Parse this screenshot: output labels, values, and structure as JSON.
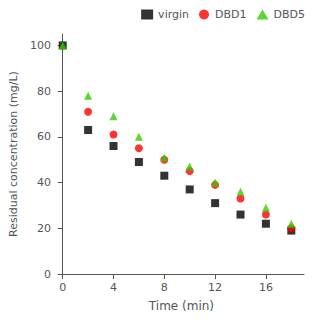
{
  "chart_data": {
    "type": "scatter",
    "xlabel": "Time (min)",
    "ylabel": "Residual concentration (mg/L)",
    "series": [
      {
        "name": "virgin",
        "color": "#000000",
        "marker": "square",
        "x": [
          0,
          2,
          4,
          6,
          8,
          10,
          12,
          14,
          16,
          18
        ],
        "values": [
          100,
          63,
          56,
          49,
          43,
          37,
          31,
          26,
          22,
          19
        ]
      },
      {
        "name": "DBD1",
        "color": "#ff0000",
        "marker": "circle",
        "x": [
          2,
          4,
          6,
          8,
          10,
          12,
          14,
          16,
          18
        ],
        "values": [
          71,
          61,
          55,
          50,
          45,
          39,
          33,
          26,
          20
        ]
      },
      {
        "name": "DBD5",
        "color": "#33cc00",
        "marker": "triangle",
        "x": [
          0,
          2,
          4,
          6,
          8,
          10,
          12,
          14,
          16,
          18
        ],
        "values": [
          100,
          78,
          69,
          60,
          51,
          47,
          40,
          36,
          29,
          22
        ]
      }
    ],
    "xlim": [
      -0.3,
      19.0
    ],
    "ylim": [
      0,
      105
    ],
    "xticks": [
      0,
      4,
      8,
      12,
      16
    ],
    "yticks": [
      0,
      20,
      40,
      60,
      80,
      100
    ],
    "grid": false,
    "legend": "upper right"
  }
}
